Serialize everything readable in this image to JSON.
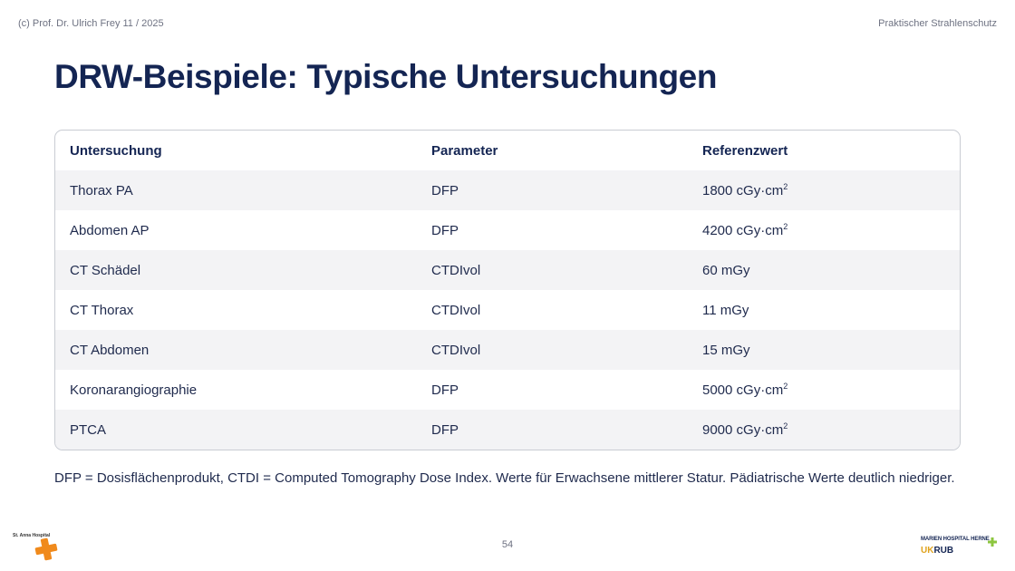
{
  "header": {
    "copyright": "(c) Prof. Dr. Ulrich Frey 11 / 2025",
    "course": "Praktischer Strahlenschutz"
  },
  "title": "DRW-Beispiele: Typische Untersuchungen",
  "table": {
    "columns": [
      "Untersuchung",
      "Parameter",
      "Referenzwert"
    ],
    "rows": [
      {
        "exam": "Thorax PA",
        "param": "DFP",
        "value": "1800 cGy·cm",
        "sup": "2"
      },
      {
        "exam": "Abdomen AP",
        "param": "DFP",
        "value": "4200 cGy·cm",
        "sup": "2"
      },
      {
        "exam": "CT Schädel",
        "param": "CTDIvol",
        "value": "60 mGy",
        "sup": ""
      },
      {
        "exam": "CT Thorax",
        "param": "CTDIvol",
        "value": "11 mGy",
        "sup": ""
      },
      {
        "exam": "CT Abdomen",
        "param": "CTDIvol",
        "value": "15 mGy",
        "sup": ""
      },
      {
        "exam": "Koronarangiographie",
        "param": "DFP",
        "value": "5000 cGy·cm",
        "sup": "2"
      },
      {
        "exam": "PTCA",
        "param": "DFP",
        "value": "9000 cGy·cm",
        "sup": "2"
      }
    ]
  },
  "footnote": "DFP = Dosisflächenprodukt, CTDI = Computed Tomography Dose Index. Werte für Erwachsene mittlerer Statur. Pädiatrische Werte deutlich niedriger.",
  "page_number": "54",
  "logos": {
    "left": {
      "name": "St. Anna Hospital",
      "icon": "orange-cross-logo",
      "color": "#f08a1c"
    },
    "right": {
      "name": "MARIEN HOSPITAL HERNE",
      "sub_uk": "UK",
      "sub_rub": "RUB",
      "icon": "green-cross-logo",
      "color": "#8cc63f"
    }
  }
}
